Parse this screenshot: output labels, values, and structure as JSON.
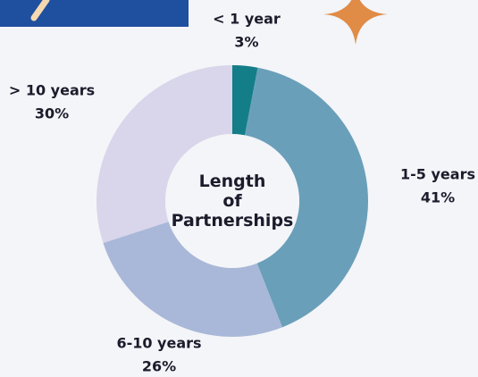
{
  "chart_data": {
    "type": "donut",
    "title": "Length of Partnerships",
    "categories": [
      "< 1 year",
      "1-5 years",
      "6-10 years",
      "> 10 years"
    ],
    "values": [
      3,
      41,
      26,
      30
    ],
    "value_labels": [
      "3%",
      "41%",
      "26%",
      "30%"
    ],
    "colors": [
      "#137e88",
      "#6a9fba",
      "#a9b8d8",
      "#d9d5ea"
    ]
  }
}
